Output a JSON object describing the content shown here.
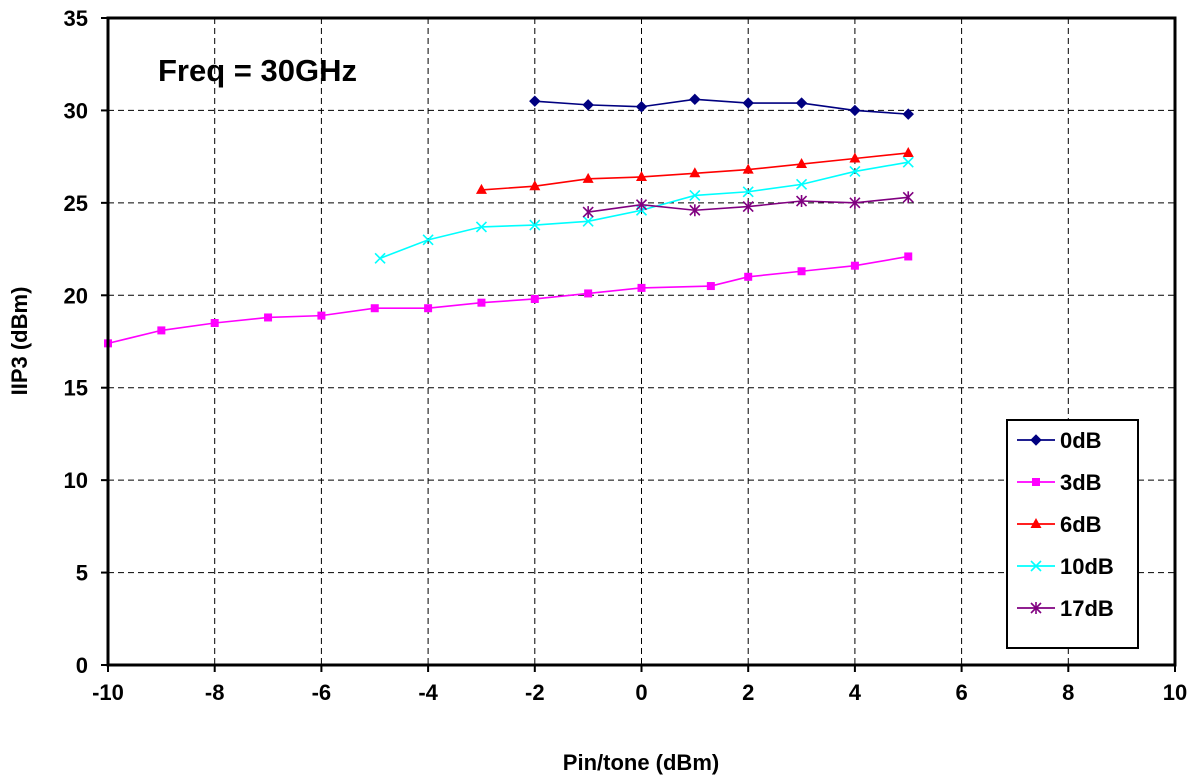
{
  "chart_data": {
    "type": "line",
    "annotation": "Freq = 30GHz",
    "xlabel": "Pin/tone (dBm)",
    "ylabel": "IIP3 (dBm)",
    "xlim": [
      -10,
      10
    ],
    "ylim": [
      0,
      35
    ],
    "xticks": [
      -10,
      -8,
      -6,
      -4,
      -2,
      0,
      2,
      4,
      6,
      8,
      10
    ],
    "yticks": [
      0,
      5,
      10,
      15,
      20,
      25,
      30,
      35
    ],
    "xtick_labels": [
      "-10",
      "-8",
      "-6",
      "-4",
      "-2",
      "0",
      "2",
      "4",
      "6",
      "8",
      "10"
    ],
    "ytick_labels": [
      "0",
      "5",
      "10",
      "15",
      "20",
      "25",
      "30",
      "35"
    ],
    "grid": true,
    "legend_position": "bottom-right",
    "series": [
      {
        "name": "0dB",
        "color": "#000080",
        "marker": "diamond",
        "points": [
          [
            -2,
            30.5
          ],
          [
            -1,
            30.3
          ],
          [
            0,
            30.2
          ],
          [
            1,
            30.6
          ],
          [
            2,
            30.4
          ],
          [
            3,
            30.4
          ],
          [
            4,
            30.0
          ],
          [
            5,
            29.8
          ]
        ]
      },
      {
        "name": "3dB",
        "color": "#FF00FF",
        "marker": "square",
        "points": [
          [
            -10,
            17.4
          ],
          [
            -9,
            18.1
          ],
          [
            -8,
            18.5
          ],
          [
            -7,
            18.8
          ],
          [
            -6,
            18.9
          ],
          [
            -5,
            19.3
          ],
          [
            -4,
            19.3
          ],
          [
            -3,
            19.6
          ],
          [
            -2,
            19.8
          ],
          [
            -1,
            20.1
          ],
          [
            0,
            20.4
          ],
          [
            1.3,
            20.5
          ],
          [
            2,
            21.0
          ],
          [
            3,
            21.3
          ],
          [
            4,
            21.6
          ],
          [
            5,
            22.1
          ]
        ]
      },
      {
        "name": "6dB",
        "color": "#FF0000",
        "marker": "triangle",
        "points": [
          [
            -3,
            25.7
          ],
          [
            -2,
            25.9
          ],
          [
            -1,
            26.3
          ],
          [
            0,
            26.4
          ],
          [
            1,
            26.6
          ],
          [
            2,
            26.8
          ],
          [
            3,
            27.1
          ],
          [
            4,
            27.4
          ],
          [
            5,
            27.7
          ]
        ]
      },
      {
        "name": "10dB",
        "color": "#00FFFF",
        "marker": "x",
        "points": [
          [
            -4.9,
            22.0
          ],
          [
            -4,
            23.0
          ],
          [
            -3,
            23.7
          ],
          [
            -2,
            23.8
          ],
          [
            -1,
            24.0
          ],
          [
            0,
            24.6
          ],
          [
            1,
            25.4
          ],
          [
            2,
            25.6
          ],
          [
            3,
            26.0
          ],
          [
            4,
            26.7
          ],
          [
            5,
            27.2
          ]
        ]
      },
      {
        "name": "17dB",
        "color": "#800080",
        "marker": "star",
        "points": [
          [
            -1,
            24.5
          ],
          [
            0,
            24.9
          ],
          [
            1,
            24.6
          ],
          [
            2,
            24.8
          ],
          [
            3,
            25.1
          ],
          [
            4,
            25.0
          ],
          [
            5,
            25.3
          ]
        ]
      }
    ]
  }
}
